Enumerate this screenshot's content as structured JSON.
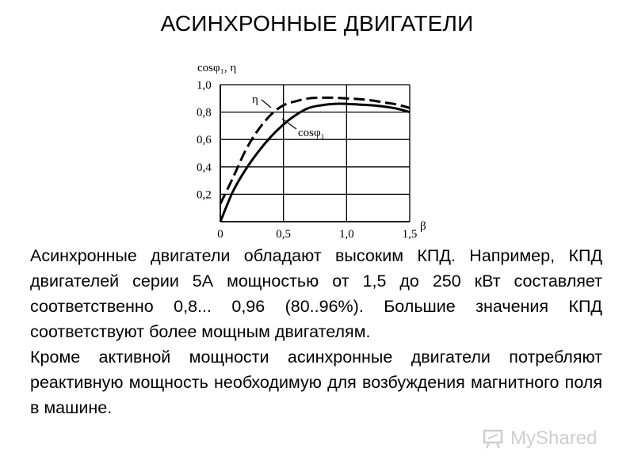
{
  "slide": {
    "title": "АСИНХРОННЫЕ ДВИГАТЕЛИ",
    "paragraphs": [
      "Асинхронные двигатели обладают высоким КПД. Например, КПД двигателей серии 5А мощностью от 1,5 до 250 кВт составляет соответственно 0,8... 0,96 (80..96%). Большие значения КПД соответствуют более мощным двигателям.",
      "Кроме активной мощности асинхронные двигатели потребляют реактивную мощность необходимую для возбуждения магнитного поля в машине."
    ],
    "watermark": {
      "text": "MyShared",
      "icon": "presentation-board-icon",
      "color": "#c9c9c9"
    }
  },
  "chart_data": {
    "type": "line",
    "title": "",
    "ylabel": "cosφ₁, η",
    "xlabel": "β",
    "xlim": [
      0,
      1.5
    ],
    "ylim": [
      0,
      1.0
    ],
    "xticks": [
      "0",
      "0,5",
      "1,0",
      "1,5"
    ],
    "yticks": [
      "0,2",
      "0,4",
      "0,6",
      "0,8",
      "1,0"
    ],
    "grid": true,
    "series": [
      {
        "name": "η",
        "style": "dashed",
        "x": [
          0,
          0.1,
          0.2,
          0.3,
          0.4,
          0.5,
          0.6,
          0.7,
          0.8,
          0.9,
          1.0,
          1.1,
          1.2,
          1.3,
          1.4,
          1.5
        ],
        "y": [
          0.13,
          0.32,
          0.52,
          0.67,
          0.78,
          0.85,
          0.88,
          0.9,
          0.905,
          0.905,
          0.9,
          0.895,
          0.885,
          0.87,
          0.855,
          0.83
        ]
      },
      {
        "name": "cosφ₁",
        "style": "solid",
        "x": [
          0,
          0.1,
          0.2,
          0.3,
          0.4,
          0.5,
          0.6,
          0.7,
          0.8,
          0.9,
          1.0,
          1.1,
          1.2,
          1.3,
          1.4,
          1.5
        ],
        "y": [
          0.0,
          0.22,
          0.38,
          0.51,
          0.62,
          0.71,
          0.78,
          0.83,
          0.85,
          0.86,
          0.86,
          0.855,
          0.85,
          0.84,
          0.825,
          0.8
        ]
      }
    ],
    "colors": {
      "line": "#000000",
      "grid": "#000000"
    }
  }
}
